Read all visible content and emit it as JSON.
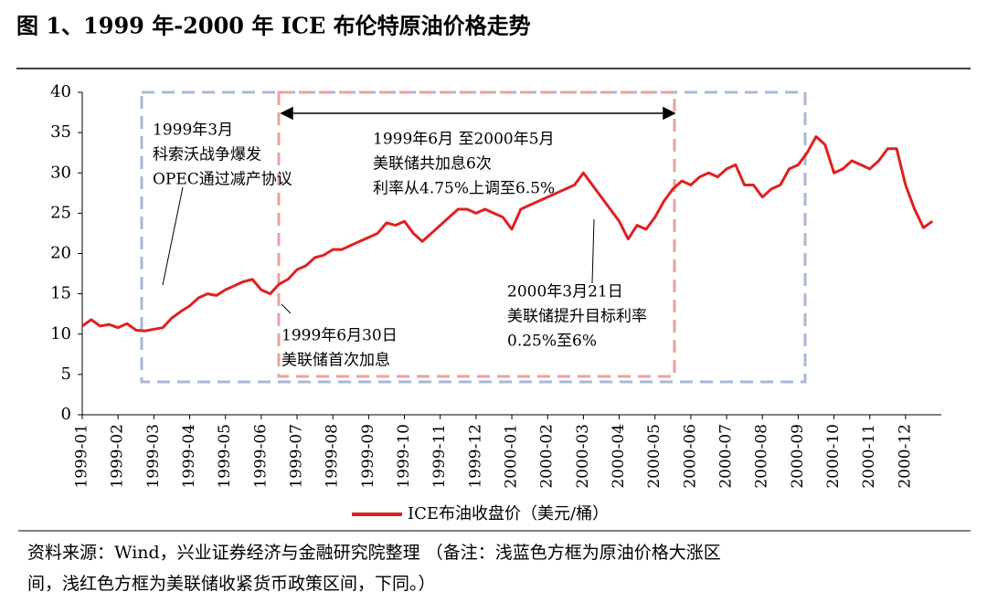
{
  "title": "图 1、1999 年-2000 年 ICE 布伦特原油价格走势",
  "chart_data": {
    "type": "line",
    "categories": [
      "1999-01",
      null,
      null,
      null,
      "1999-02",
      null,
      null,
      null,
      "1999-03",
      null,
      null,
      null,
      "1999-04",
      null,
      null,
      null,
      "1999-05",
      null,
      null,
      null,
      "1999-06",
      null,
      null,
      null,
      "1999-07",
      null,
      null,
      null,
      "1999-08",
      null,
      null,
      null,
      "1999-09",
      null,
      null,
      null,
      "1999-10",
      null,
      null,
      null,
      "1999-11",
      null,
      null,
      null,
      "1999-12",
      null,
      null,
      null,
      "2000-01",
      null,
      null,
      null,
      "2000-02",
      null,
      null,
      null,
      "2000-03",
      null,
      null,
      null,
      "2000-04",
      null,
      null,
      null,
      "2000-05",
      null,
      null,
      null,
      "2000-06",
      null,
      null,
      null,
      "2000-07",
      null,
      null,
      null,
      "2000-08",
      null,
      null,
      null,
      "2000-09",
      null,
      null,
      null,
      "2000-10",
      null,
      null,
      null,
      "2000-11",
      null,
      null,
      null,
      "2000-12",
      null,
      null,
      null
    ],
    "series": [
      {
        "name": "ICE布油收盘价（美元/桶）",
        "color": "#e02020",
        "values": [
          11,
          11.8,
          11,
          11.2,
          10.8,
          11.3,
          10.5,
          10.4,
          10.6,
          10.8,
          12,
          12.8,
          13.5,
          14.5,
          15,
          14.8,
          15.5,
          16,
          16.5,
          16.8,
          15.5,
          15,
          16.2,
          16.8,
          18,
          18.5,
          19.5,
          19.8,
          20.5,
          20.5,
          21,
          21.5,
          22,
          22.5,
          23.8,
          23.5,
          24,
          22.5,
          21.5,
          22.5,
          23.5,
          24.5,
          25.5,
          25.5,
          25,
          25.5,
          25,
          24.5,
          23,
          25.5,
          26,
          26.5,
          27,
          27.5,
          28,
          28.5,
          30,
          28.5,
          27,
          25.5,
          24,
          21.8,
          23.5,
          23,
          24.5,
          26.5,
          28,
          29,
          28.5,
          29.5,
          30,
          29.5,
          30.5,
          31,
          28.5,
          28.5,
          27,
          28,
          28.5,
          30.5,
          31,
          32.5,
          34.5,
          33.5,
          30,
          30.5,
          31.5,
          31,
          30.5,
          31.5,
          33,
          33,
          28.5,
          25.5,
          23.2,
          24
        ]
      }
    ],
    "ylim": [
      0,
      40
    ],
    "yticks": [
      0,
      5,
      10,
      15,
      20,
      25,
      30,
      35,
      40
    ],
    "annotations": [
      [
        "1999年3月",
        "科索沃战争爆发",
        "OPEC通过减产协议"
      ],
      [
        "1999年6月 至2000年5月",
        "美联储共加息6次",
        "利率从4.75%上调至6.5%"
      ],
      [
        "2000年3月21日",
        "美联储提升目标利率",
        "0.25%至6%"
      ],
      [
        "1999年6月30日",
        "美联储首次加息"
      ]
    ]
  },
  "footnote": [
    "资料来源：Wind，兴业证券经济与金融研究院整理 （备注：浅蓝色方框为原油价格大涨区",
    "间，浅红色方框为美联储收紧货币政策区间，下同。）"
  ]
}
